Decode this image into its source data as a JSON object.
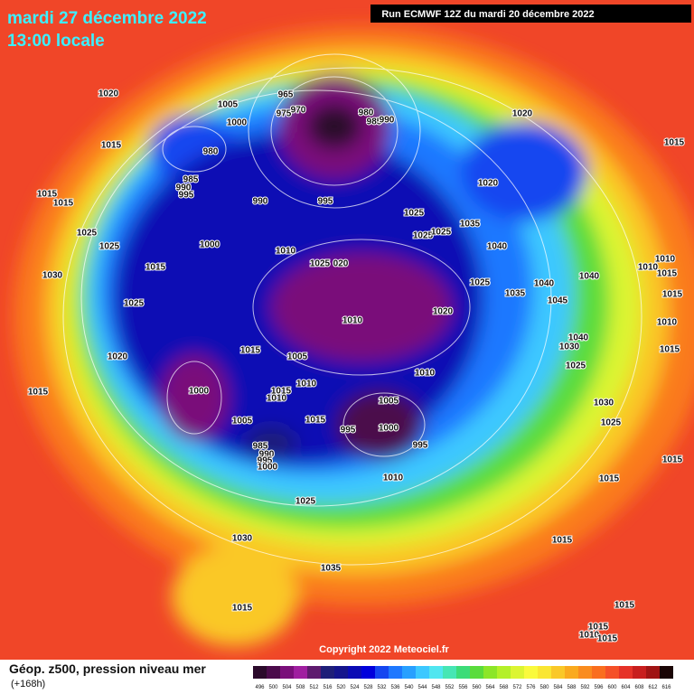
{
  "header": {
    "date": "mardi 27 décembre 2022",
    "time": "13:00 locale",
    "run": "Run ECMWF 12Z du mardi 20 décembre 2022"
  },
  "isobar_labels": [
    "1020",
    "1005",
    "965",
    "975",
    "970",
    "980",
    "985",
    "990",
    "1000",
    "1015",
    "980",
    "985",
    "990",
    "995",
    "990",
    "995",
    "1015",
    "1015",
    "1025",
    "1025",
    "1000",
    "1010",
    "1025",
    "020",
    "1015",
    "1030",
    "1025",
    "1010",
    "1020",
    "1015",
    "1005",
    "1010",
    "1015",
    "1010",
    "1000",
    "1015",
    "1005",
    "1015",
    "985",
    "990",
    "995",
    "1000",
    "995",
    "1000",
    "1005",
    "995",
    "1010",
    "1010",
    "1025",
    "1030",
    "1035",
    "1015",
    "1015",
    "1020",
    "1015",
    "1020",
    "1025",
    "1035",
    "1025",
    "1025",
    "1040",
    "1040",
    "1010",
    "1010",
    "1015",
    "1015",
    "1025",
    "1035",
    "1040",
    "1020",
    "1045",
    "1040",
    "1030",
    "1010",
    "1015",
    "1025",
    "1030",
    "1025",
    "1015",
    "1015",
    "1015",
    "1015",
    "1010",
    "1015"
  ],
  "copyright": "Copyright 2022 Meteociel.fr",
  "legend": {
    "title": "Géop. z500, pression niveau mer",
    "lead": "(+168h)",
    "scale": [
      496,
      500,
      504,
      508,
      512,
      516,
      520,
      524,
      528,
      532,
      536,
      540,
      544,
      548,
      552,
      556,
      560,
      564,
      568,
      572,
      576,
      580,
      584,
      588,
      592,
      596,
      600,
      604,
      608,
      612,
      616
    ],
    "colors": [
      "#2b0a2b",
      "#4b0b4b",
      "#7a0f7a",
      "#a01ea0",
      "#5e1a6e",
      "#1e1e78",
      "#14148c",
      "#0a0ab4",
      "#0000dc",
      "#1446f0",
      "#1e78ff",
      "#28a0ff",
      "#3cc8ff",
      "#50e6f0",
      "#46e6b4",
      "#3cdc78",
      "#5adc3c",
      "#8ce628",
      "#b4f028",
      "#dcf532",
      "#fafa3c",
      "#fae632",
      "#fac828",
      "#faaa1e",
      "#fa8c1e",
      "#fa6e1e",
      "#f55028",
      "#e63228",
      "#c81e1e",
      "#a01414",
      "#1a0505"
    ]
  }
}
